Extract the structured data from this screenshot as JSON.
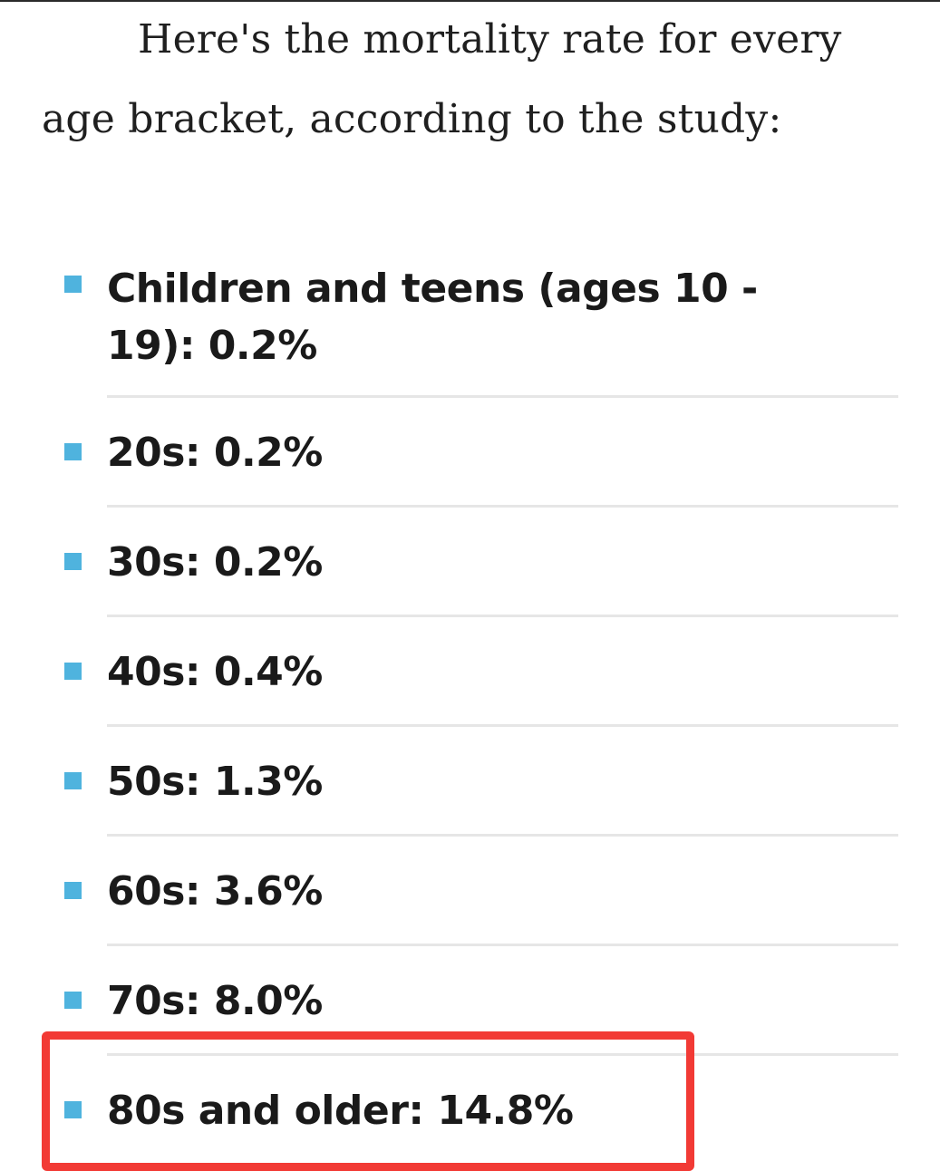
{
  "intro": {
    "text": "Here's the mortality rate for every age bracket, according to the study:"
  },
  "items": [
    {
      "label": "Children and teens (ages 10 - 19): 0.2%"
    },
    {
      "label": "20s: 0.2%"
    },
    {
      "label": "30s: 0.2%"
    },
    {
      "label": "40s: 0.4%"
    },
    {
      "label": "50s: 1.3%"
    },
    {
      "label": "60s: 3.6%"
    },
    {
      "label": "70s: 8.0%"
    },
    {
      "label": "80s and older: 14.8%"
    }
  ],
  "colors": {
    "bullet": "#4fb3de",
    "highlight_border": "#f23a35",
    "separator": "#e6e6e6",
    "text": "#1a1a1a"
  }
}
